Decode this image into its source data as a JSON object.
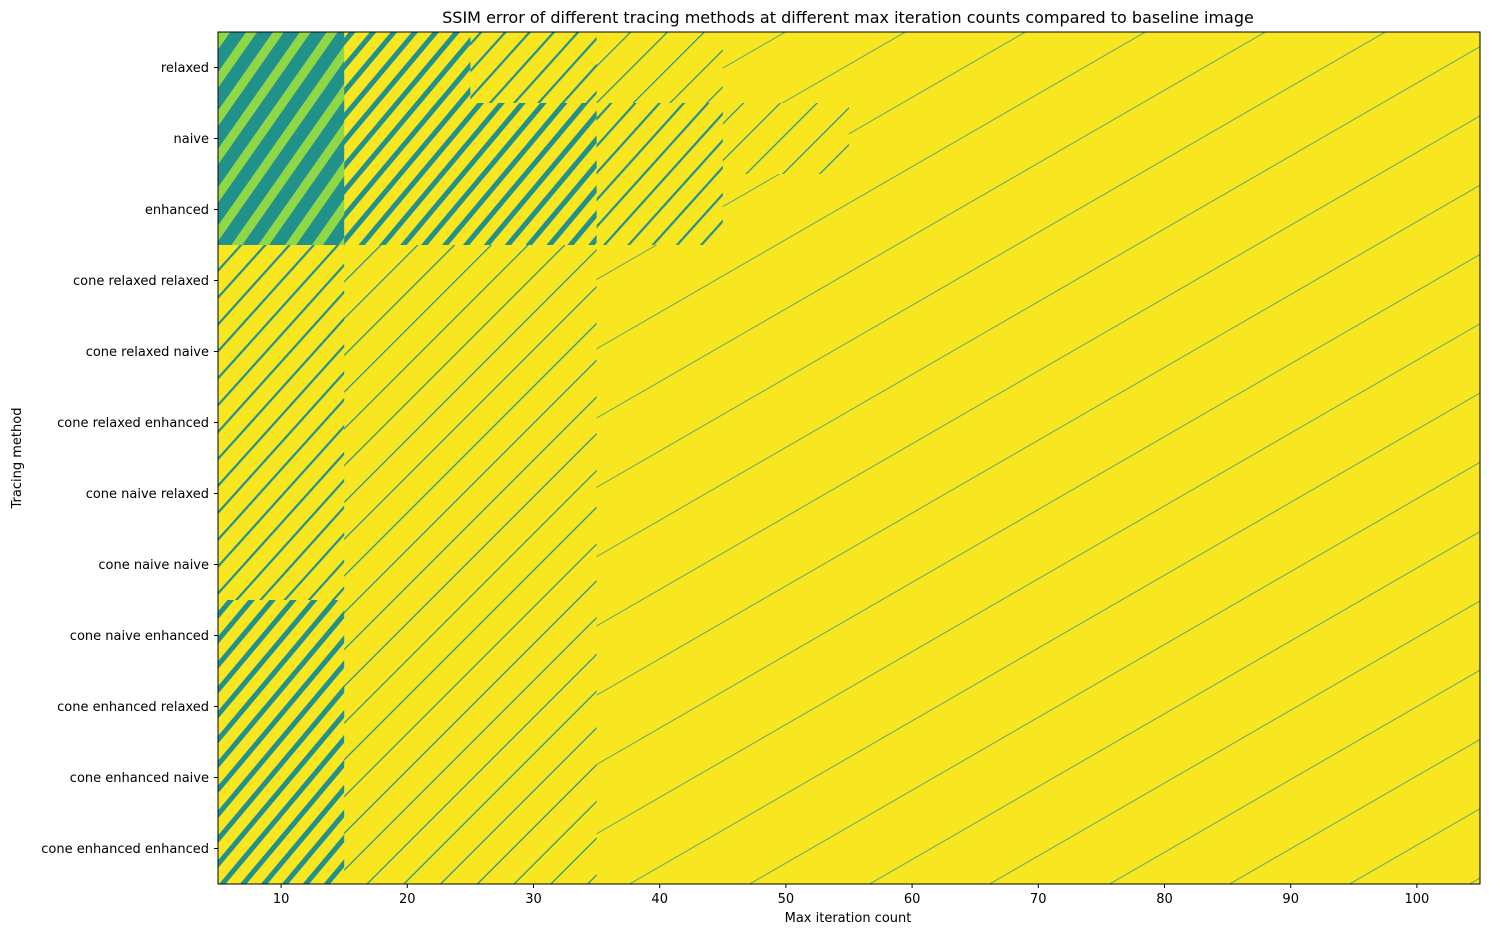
{
  "chart_data": {
    "type": "heatmap",
    "title": "SSIM error of different tracing methods at different max iteration counts compared to baseline image",
    "xlabel": "Max iteration count",
    "ylabel": "Tracing method",
    "xlim": [
      5,
      105
    ],
    "xticks": [
      10,
      20,
      30,
      40,
      50,
      60,
      70,
      80,
      90,
      100
    ],
    "x_cells": [
      10,
      20,
      30,
      40,
      50,
      60,
      70,
      80,
      90,
      100
    ],
    "y_categories": [
      "relaxed",
      "naive",
      "enhanced",
      "cone relaxed relaxed",
      "cone relaxed naive",
      "cone relaxed enhanced",
      "cone naive relaxed",
      "cone naive naive",
      "cone naive enhanced",
      "cone enhanced relaxed",
      "cone enhanced naive",
      "cone enhanced enhanced"
    ],
    "colormap": {
      "low": "#21918c",
      "mid": "#8fd744",
      "high": "#f8e621"
    },
    "error_level_rows": [
      [
        0.95,
        0.75,
        0.45,
        0.15,
        0.05,
        0.02,
        0.02,
        0.02,
        0.02,
        0.02
      ],
      [
        0.95,
        0.8,
        0.6,
        0.25,
        0.1,
        0.05,
        0.02,
        0.02,
        0.02,
        0.02
      ],
      [
        0.95,
        0.8,
        0.55,
        0.35,
        0.05,
        0.02,
        0.02,
        0.02,
        0.02,
        0.02
      ],
      [
        0.4,
        0.15,
        0.08,
        0.05,
        0.02,
        0.02,
        0.02,
        0.02,
        0.02,
        0.02
      ],
      [
        0.45,
        0.18,
        0.1,
        0.05,
        0.02,
        0.02,
        0.02,
        0.02,
        0.02,
        0.02
      ],
      [
        0.45,
        0.15,
        0.08,
        0.05,
        0.02,
        0.02,
        0.02,
        0.02,
        0.02,
        0.02
      ],
      [
        0.45,
        0.15,
        0.08,
        0.05,
        0.02,
        0.02,
        0.02,
        0.02,
        0.02,
        0.02
      ],
      [
        0.4,
        0.15,
        0.08,
        0.05,
        0.02,
        0.02,
        0.02,
        0.02,
        0.02,
        0.02
      ],
      [
        0.5,
        0.15,
        0.08,
        0.05,
        0.02,
        0.02,
        0.02,
        0.02,
        0.02,
        0.02
      ],
      [
        0.55,
        0.18,
        0.08,
        0.05,
        0.02,
        0.02,
        0.02,
        0.02,
        0.02,
        0.02
      ],
      [
        0.55,
        0.18,
        0.08,
        0.05,
        0.02,
        0.02,
        0.02,
        0.02,
        0.02,
        0.02
      ],
      [
        0.6,
        0.18,
        0.1,
        0.05,
        0.02,
        0.02,
        0.02,
        0.02,
        0.02,
        0.02
      ]
    ]
  }
}
